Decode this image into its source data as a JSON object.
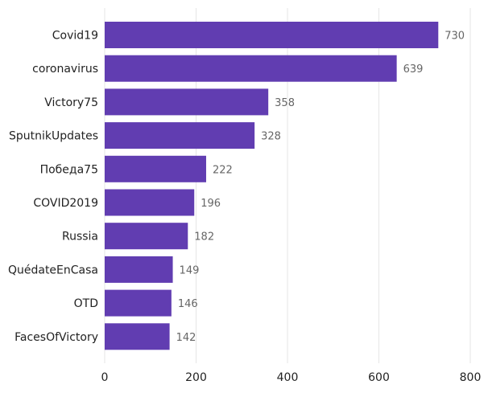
{
  "chart_data": {
    "type": "bar",
    "orientation": "horizontal",
    "title": "",
    "xlabel": "",
    "ylabel": "",
    "categories": [
      "Covid19",
      "coronavirus",
      "Victory75",
      "SputnikUpdates",
      "Победа75",
      "COVID2019",
      "Russia",
      "QuédateEnCasa",
      "OTD",
      "FacesOfVictory"
    ],
    "values": [
      730,
      639,
      358,
      328,
      222,
      196,
      182,
      149,
      146,
      142
    ],
    "value_labels": [
      "730",
      "639",
      "358",
      "328",
      "222",
      "196",
      "182",
      "149",
      "146",
      "142"
    ],
    "xlim": [
      0,
      800
    ],
    "xticks": [
      0,
      200,
      400,
      600,
      800
    ],
    "xtick_labels": [
      "0",
      "200",
      "400",
      "600",
      "800"
    ],
    "grid": true,
    "bar_color": "#613DB1"
  }
}
